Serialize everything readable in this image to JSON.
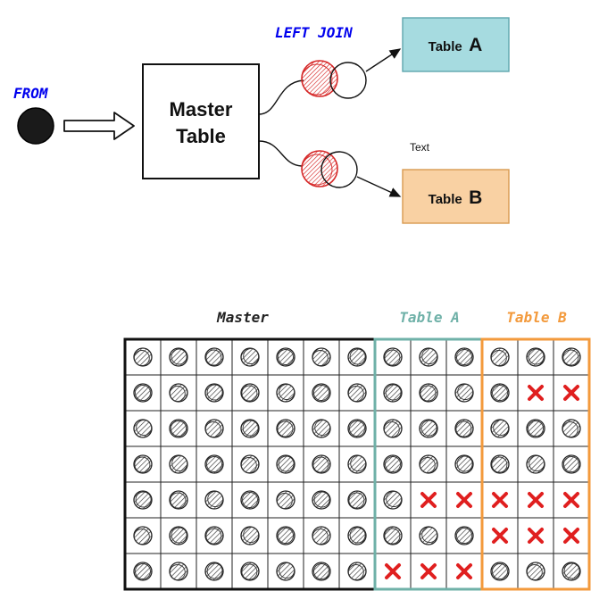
{
  "top": {
    "from_label": "FROM",
    "master_line1": "Master",
    "master_line2": "Table",
    "join_label": "LEFT JOIN",
    "table_a_word": "Table",
    "table_a_letter": "A",
    "table_b_word": "Table",
    "table_b_letter": "B",
    "text_label": "Text"
  },
  "bottom": {
    "master_header": "Master",
    "table_a_header": "Table A",
    "table_b_header": "Table B",
    "missing_cells": [
      [
        1,
        11
      ],
      [
        1,
        12
      ],
      [
        4,
        8
      ],
      [
        4,
        9
      ],
      [
        4,
        10
      ],
      [
        4,
        11
      ],
      [
        4,
        12
      ],
      [
        5,
        10
      ],
      [
        5,
        11
      ],
      [
        5,
        12
      ],
      [
        6,
        7
      ],
      [
        6,
        8
      ],
      [
        6,
        9
      ]
    ]
  },
  "colors": {
    "from_blue": "#0000ee",
    "table_a_fill": "#a6dbe0",
    "table_a_border": "#5fa6ad",
    "table_b_fill": "#f9d1a3",
    "table_b_border": "#d99a50",
    "venn_red": "#d62828",
    "table_a_frame": "#6fb1a8",
    "table_b_frame": "#f39a3c",
    "cross_red": "#e01f1f",
    "master_header": "#222222",
    "table_a_header": "#6fb1a8",
    "table_b_header": "#f39a3c"
  },
  "icons": {
    "source": "filled-circle-icon",
    "arrow": "hollow-arrow-icon",
    "venn": "venn-left-join-icon",
    "row_marker": "scribble-circle-icon",
    "missing_marker": "red-cross-icon"
  }
}
